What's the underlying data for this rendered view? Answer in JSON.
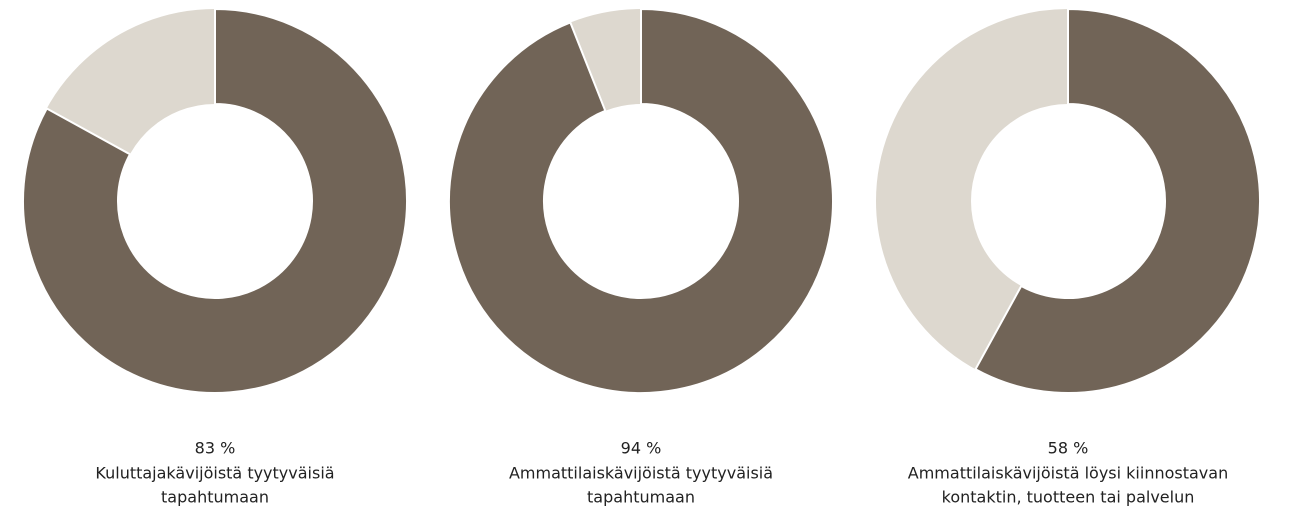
{
  "chart_data": [
    {
      "type": "donut",
      "value": 83,
      "value_label": "83 %",
      "lim": [
        0,
        100
      ],
      "caption": [
        "Kuluttajakävijöistä tyytyväisiä",
        "tapahtumaan"
      ],
      "color": "#716457",
      "track_color": "#ddd8cf"
    },
    {
      "type": "donut",
      "value": 94,
      "value_label": "94 %",
      "lim": [
        0,
        100
      ],
      "caption": [
        "Ammattilaiskävijöistä tyytyväisiä",
        "tapahtumaan"
      ],
      "color": "#716457",
      "track_color": "#ddd8cf"
    },
    {
      "type": "donut",
      "value": 58,
      "value_label": "58 %",
      "lim": [
        0,
        100
      ],
      "caption": [
        "Ammattilaiskävijöistä löysi kiinnostavan",
        "kontaktin, tuotteen tai palvelun"
      ],
      "color": "#716457",
      "track_color": "#ddd8cf"
    }
  ]
}
